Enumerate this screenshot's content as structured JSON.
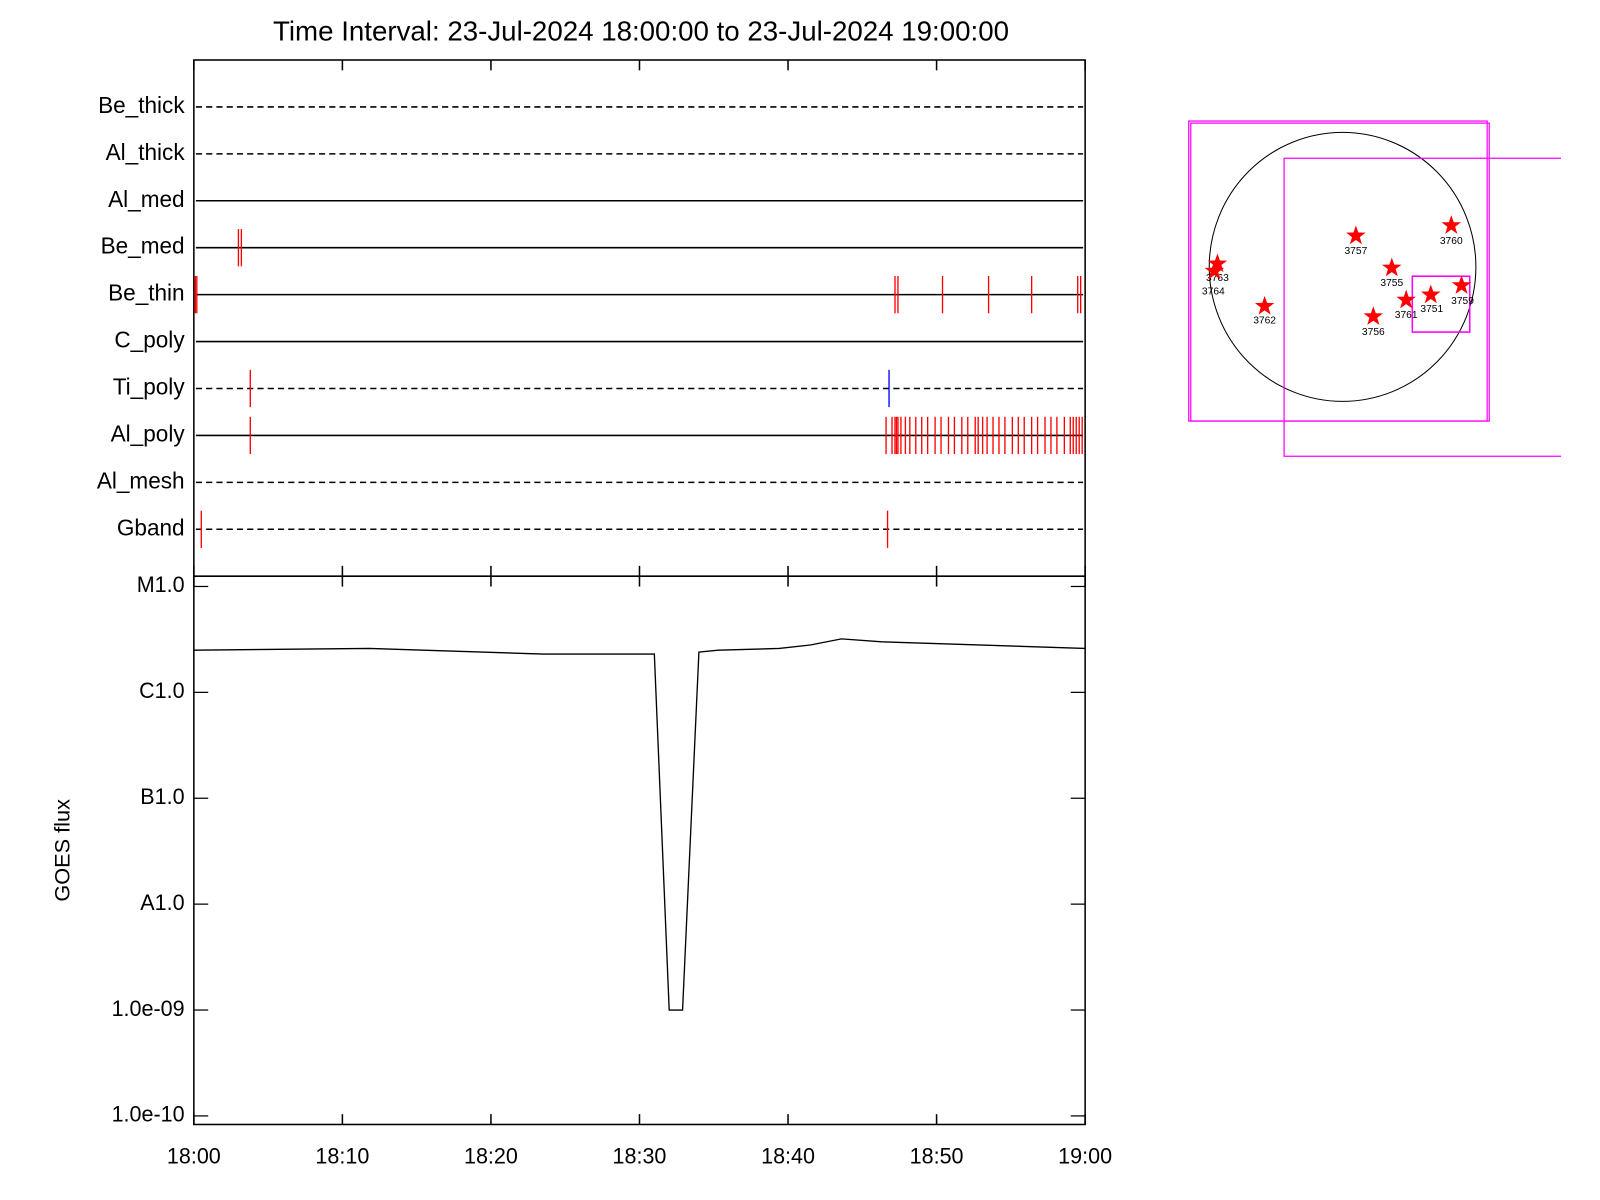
{
  "chart_data": [
    {
      "type": "timeline",
      "title": "Time Interval: 23-Jul-2024 18:00:00 to 23-Jul-2024 19:00:00",
      "event_color": "#ff0000",
      "rows": [
        {
          "name": "Be_thick",
          "line": "dashed",
          "events": []
        },
        {
          "name": "Al_thick",
          "line": "dashed",
          "events": []
        },
        {
          "name": "Al_med",
          "line": "solid",
          "events": []
        },
        {
          "name": "Be_med",
          "line": "solid",
          "events": [
            3.0,
            3.2
          ]
        },
        {
          "name": "Be_thin",
          "line": "solid",
          "events": [
            0.1,
            0.2,
            47.2,
            47.4,
            50.4,
            53.5,
            56.4,
            59.5,
            59.7
          ]
        },
        {
          "name": "C_poly",
          "line": "solid",
          "events": []
        },
        {
          "name": "Ti_poly",
          "line": "dashed",
          "events": [
            3.8,
            46.8
          ],
          "colors": [
            "#ff0000",
            "#0000ff"
          ]
        },
        {
          "name": "Al_poly",
          "line": "solid",
          "events": [
            3.8,
            46.6,
            47.0,
            47.2,
            47.3,
            47.4,
            47.6,
            47.9,
            48.2,
            48.6,
            49.0,
            49.4,
            49.9,
            50.3,
            50.8,
            51.2,
            51.7,
            52.1,
            52.6,
            52.8,
            53.1,
            53.4,
            53.8,
            54.2,
            54.6,
            55.1,
            55.5,
            55.9,
            56.4,
            56.8,
            57.3,
            57.7,
            58.1,
            58.6,
            59.0,
            59.2,
            59.4,
            59.6,
            59.8
          ]
        },
        {
          "name": "Al_mesh",
          "line": "dashed",
          "events": []
        },
        {
          "name": "Gband",
          "line": "dashed",
          "events": [
            0.5,
            46.7
          ]
        }
      ]
    },
    {
      "type": "line",
      "ylabel": "GOES flux",
      "log_y": true,
      "color": "#000000",
      "xlim": [
        0,
        60
      ],
      "xticks": [
        {
          "value": 0,
          "label": "18:00"
        },
        {
          "value": 10,
          "label": "18:10"
        },
        {
          "value": 20,
          "label": "18:20"
        },
        {
          "value": 30,
          "label": "18:30"
        },
        {
          "value": 40,
          "label": "18:40"
        },
        {
          "value": 50,
          "label": "18:50"
        },
        {
          "value": 60,
          "label": "19:00"
        }
      ],
      "ylim": [
        8.3e-11,
        1.25e-05
      ],
      "yticks": [
        {
          "value": 1e-05,
          "label": "M1.0"
        },
        {
          "value": 1e-06,
          "label": "C1.0"
        },
        {
          "value": 1e-07,
          "label": "B1.0"
        },
        {
          "value": 1e-08,
          "label": "A1.0"
        },
        {
          "value": 1e-09,
          "label": "1.0e-09"
        },
        {
          "value": 1e-10,
          "label": "1.0e-10"
        }
      ],
      "x": [
        0,
        11.8,
        23.5,
        31.0,
        32.0,
        32.9,
        34.0,
        35.3,
        39.4,
        41.5,
        43.6,
        46.3,
        60
      ],
      "values": [
        2.5e-06,
        2.6e-06,
        2.3e-06,
        2.3e-06,
        1e-09,
        1e-09,
        2.4e-06,
        2.5e-06,
        2.6e-06,
        2.8e-06,
        3.2e-06,
        3e-06,
        2.6e-06
      ]
    },
    {
      "type": "map",
      "regions": [
        "3757",
        "3760",
        "3755",
        "3763",
        "3764",
        "3762",
        "3756",
        "3761",
        "3751",
        "3759"
      ]
    }
  ]
}
